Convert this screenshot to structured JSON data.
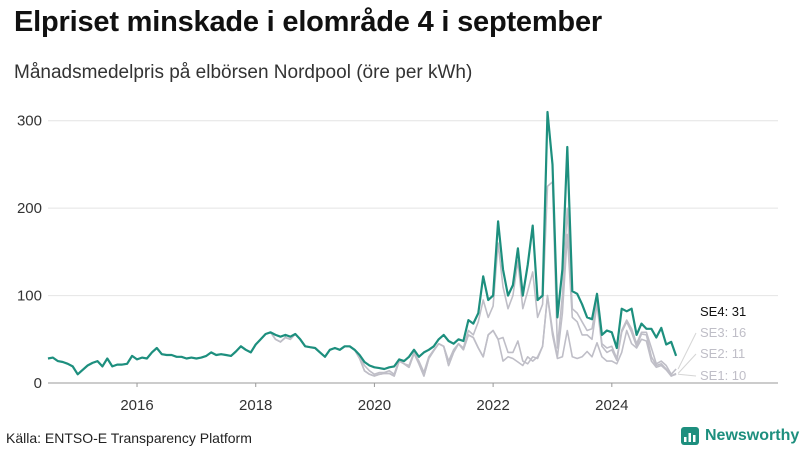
{
  "chart_data": {
    "type": "line",
    "title": "Elpriset minskade i elområde 4 i september",
    "subtitle": "Månadsmedelpris på elbörsen Nordpool (öre per kWh)",
    "source": "Källa: ENTSO-E Transparency Platform",
    "brand": "Newsworthy",
    "xlabel": "",
    "ylabel": "",
    "x_start": "2015-01",
    "xlim": [
      2015.0,
      2027.3
    ],
    "ylim": [
      0,
      310
    ],
    "x_ticks": [
      2016,
      2018,
      2020,
      2022,
      2024
    ],
    "y_ticks": [
      0,
      100,
      200,
      300
    ],
    "grid": true,
    "colors": {
      "SE4": "#1d8f7e",
      "other": "#bfbec7",
      "leader": "#d5d5d5",
      "grid": "#e4e4e4",
      "axis": "#999999"
    },
    "series": [
      {
        "name": "SE4",
        "label": "SE4: 31",
        "highlight": true,
        "values": [
          28,
          29,
          25,
          24,
          22,
          19,
          10,
          15,
          20,
          23,
          25,
          19,
          28,
          19,
          21,
          21,
          22,
          31,
          27,
          29,
          28,
          35,
          40,
          33,
          32,
          32,
          30,
          30,
          28,
          29,
          28,
          29,
          31,
          35,
          32,
          33,
          32,
          31,
          36,
          42,
          38,
          35,
          44,
          50,
          56,
          58,
          55,
          53,
          55,
          53,
          56,
          50,
          42,
          41,
          40,
          35,
          30,
          38,
          40,
          38,
          42,
          42,
          38,
          32,
          24,
          20,
          18,
          17,
          16,
          18,
          19,
          27,
          25,
          30,
          38,
          30,
          35,
          38,
          42,
          50,
          55,
          48,
          45,
          50,
          48,
          72,
          68,
          80,
          122,
          95,
          100,
          185,
          130,
          100,
          112,
          154,
          100,
          135,
          180,
          95,
          100,
          310,
          250,
          75,
          130,
          270,
          105,
          102,
          90,
          75,
          73,
          102,
          55,
          60,
          58,
          40,
          85,
          82,
          85,
          55,
          68,
          62,
          62,
          52,
          63,
          44,
          47,
          31
        ]
      },
      {
        "name": "SE3",
        "label": "SE3: 16",
        "highlight": false,
        "values": [
          28,
          29,
          25,
          24,
          22,
          19,
          10,
          15,
          20,
          23,
          25,
          19,
          28,
          19,
          21,
          21,
          22,
          31,
          27,
          29,
          28,
          35,
          40,
          33,
          32,
          32,
          30,
          30,
          28,
          29,
          28,
          29,
          31,
          35,
          32,
          33,
          32,
          31,
          36,
          42,
          38,
          35,
          44,
          50,
          56,
          58,
          50,
          47,
          52,
          50,
          56,
          50,
          42,
          41,
          40,
          35,
          30,
          38,
          40,
          38,
          42,
          42,
          38,
          30,
          20,
          14,
          10,
          12,
          12,
          14,
          10,
          27,
          22,
          20,
          35,
          25,
          12,
          30,
          38,
          45,
          42,
          25,
          38,
          45,
          40,
          60,
          55,
          70,
          95,
          75,
          88,
          160,
          110,
          85,
          100,
          140,
          85,
          105,
          127,
          75,
          90,
          225,
          230,
          40,
          100,
          200,
          85,
          80,
          70,
          60,
          62,
          95,
          45,
          40,
          42,
          28,
          60,
          72,
          62,
          45,
          58,
          58,
          40,
          22,
          25,
          20,
          10,
          16
        ]
      },
      {
        "name": "SE2",
        "label": "SE2: 11",
        "highlight": false,
        "values": [
          28,
          29,
          25,
          24,
          22,
          19,
          10,
          15,
          20,
          23,
          25,
          19,
          28,
          19,
          21,
          21,
          22,
          31,
          27,
          29,
          28,
          35,
          40,
          33,
          32,
          32,
          30,
          30,
          28,
          29,
          28,
          29,
          31,
          35,
          32,
          33,
          32,
          31,
          36,
          42,
          38,
          35,
          44,
          50,
          56,
          58,
          50,
          47,
          52,
          50,
          56,
          50,
          42,
          41,
          40,
          35,
          30,
          38,
          40,
          38,
          42,
          42,
          38,
          28,
          14,
          10,
          8,
          10,
          11,
          11,
          8,
          25,
          22,
          18,
          34,
          22,
          8,
          28,
          37,
          45,
          42,
          20,
          35,
          45,
          38,
          55,
          52,
          40,
          30,
          55,
          60,
          50,
          52,
          35,
          35,
          48,
          25,
          22,
          30,
          28,
          42,
          100,
          60,
          30,
          80,
          170,
          75,
          70,
          55,
          55,
          50,
          90,
          42,
          35,
          38,
          26,
          58,
          70,
          58,
          42,
          56,
          55,
          30,
          20,
          22,
          16,
          8,
          11
        ]
      },
      {
        "name": "SE1",
        "label": "SE1: 10",
        "highlight": false,
        "values": [
          28,
          29,
          25,
          24,
          22,
          19,
          10,
          15,
          20,
          23,
          25,
          19,
          28,
          19,
          21,
          21,
          22,
          31,
          27,
          29,
          28,
          35,
          40,
          33,
          32,
          32,
          30,
          30,
          28,
          29,
          28,
          29,
          31,
          35,
          32,
          33,
          32,
          31,
          36,
          42,
          38,
          35,
          44,
          50,
          56,
          58,
          50,
          47,
          52,
          50,
          56,
          50,
          42,
          41,
          40,
          35,
          30,
          38,
          40,
          38,
          42,
          42,
          38,
          28,
          14,
          10,
          8,
          10,
          11,
          11,
          8,
          25,
          22,
          18,
          34,
          22,
          8,
          28,
          37,
          45,
          42,
          20,
          35,
          45,
          38,
          55,
          52,
          40,
          30,
          55,
          60,
          50,
          25,
          30,
          28,
          24,
          20,
          30,
          25,
          30,
          42,
          100,
          55,
          28,
          30,
          60,
          30,
          28,
          30,
          36,
          30,
          46,
          30,
          25,
          25,
          22,
          35,
          60,
          45,
          40,
          50,
          48,
          25,
          18,
          20,
          15,
          8,
          10
        ]
      }
    ]
  }
}
